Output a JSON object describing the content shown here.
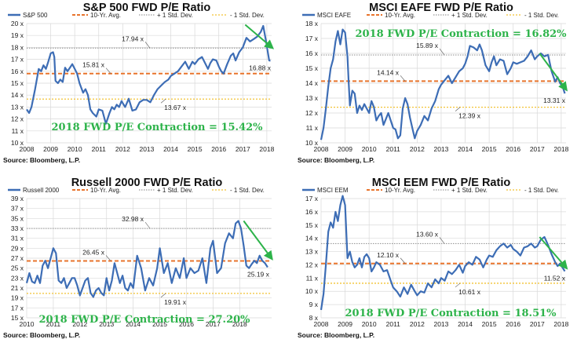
{
  "colors": {
    "series": "#3d6db5",
    "avg": "#e8742c",
    "plus": "#9a9a9a",
    "minus": "#f2c233",
    "arrow": "#2db34a",
    "contraction": "#2db34a",
    "grid": "#d9d9d9"
  },
  "chart_data": [
    {
      "type": "line",
      "title": "S&P 500 FWD P/E Ratio",
      "series_name": "S&P 500",
      "legend": {
        "avg": "10-Yr. Avg.",
        "plus": "+ 1 Std. Dev.",
        "minus": "- 1 Std. Dev."
      },
      "ylim": [
        10,
        20
      ],
      "yticks": [
        10,
        11,
        12,
        13,
        14,
        15,
        16,
        17,
        18,
        19,
        20
      ],
      "ytick_labels": [
        "10 x",
        "11 x",
        "12 x",
        "13 x",
        "14 x",
        "15 x",
        "16 x",
        "17 x",
        "18 x",
        "19 x",
        "20 x"
      ],
      "xlim": [
        2008,
        2018.2
      ],
      "xtick_labels": [
        "2008",
        "2009",
        "2010",
        "2011",
        "2012",
        "2013",
        "2014",
        "2015",
        "2016",
        "2017",
        "2018"
      ],
      "avg": 15.81,
      "plus_sd": 17.94,
      "minus_sd": 13.67,
      "avg_label": "15.81 x",
      "plus_label": "17.94 x",
      "minus_label": "13.67 x",
      "last_label": "16.88 x",
      "contraction": "2018 FWD P/E Contraction = 15.42%",
      "source": "Source: Bloomberg, L.P.",
      "x": [
        2008.0,
        2008.1,
        2008.2,
        2008.35,
        2008.5,
        2008.6,
        2008.7,
        2008.8,
        2008.9,
        2009.0,
        2009.1,
        2009.15,
        2009.2,
        2009.3,
        2009.4,
        2009.5,
        2009.6,
        2009.7,
        2009.8,
        2009.9,
        2010.0,
        2010.1,
        2010.2,
        2010.35,
        2010.45,
        2010.55,
        2010.65,
        2010.75,
        2010.9,
        2011.0,
        2011.15,
        2011.3,
        2011.45,
        2011.55,
        2011.65,
        2011.75,
        2011.85,
        2011.95,
        2012.1,
        2012.25,
        2012.4,
        2012.55,
        2012.7,
        2012.85,
        2013.0,
        2013.15,
        2013.3,
        2013.45,
        2013.6,
        2013.75,
        2013.9,
        2014.0,
        2014.15,
        2014.3,
        2014.45,
        2014.6,
        2014.75,
        2014.9,
        2015.0,
        2015.15,
        2015.3,
        2015.45,
        2015.55,
        2015.65,
        2015.75,
        2015.9,
        2016.0,
        2016.1,
        2016.2,
        2016.35,
        2016.5,
        2016.6,
        2016.7,
        2016.85,
        2017.0,
        2017.15,
        2017.3,
        2017.45,
        2017.6,
        2017.75,
        2017.85,
        2017.95,
        2018.05,
        2018.1,
        2018.15
      ],
      "values": [
        12.8,
        12.5,
        13.0,
        14.5,
        16.2,
        16.0,
        16.5,
        16.2,
        16.8,
        17.5,
        17.6,
        17.2,
        15.2,
        15.0,
        15.3,
        15.1,
        16.3,
        16.0,
        16.3,
        16.6,
        16.2,
        15.8,
        15.0,
        14.2,
        14.5,
        14.0,
        12.8,
        12.5,
        12.2,
        12.8,
        12.7,
        11.6,
        12.5,
        13.0,
        12.8,
        13.2,
        13.0,
        13.5,
        13.0,
        13.7,
        12.7,
        12.8,
        13.4,
        13.6,
        13.6,
        13.4,
        14.0,
        14.5,
        14.8,
        15.1,
        15.3,
        15.6,
        15.8,
        16.0,
        16.4,
        16.8,
        16.2,
        16.8,
        16.6,
        17.0,
        17.2,
        16.6,
        16.2,
        16.7,
        17.0,
        16.9,
        16.4,
        16.0,
        15.8,
        16.6,
        17.3,
        17.5,
        16.9,
        17.6,
        18.0,
        18.8,
        18.5,
        18.7,
        18.9,
        19.3,
        19.8,
        18.7,
        17.5,
        16.9,
        16.88
      ],
      "arrow": {
        "from": [
          2017.1,
          19.9
        ],
        "to": [
          2018.15,
          18.1
        ]
      }
    },
    {
      "type": "line",
      "title": "MSCI EAFE FWD P/E Ratio",
      "series_name": "MSCI EAFE",
      "legend": {
        "avg": "10-Yr. Avg.",
        "plus": "+ 1 Std. Dev.",
        "minus": "- 1 Std. Dev."
      },
      "ylim": [
        10,
        18
      ],
      "yticks": [
        10,
        11,
        12,
        13,
        14,
        15,
        16,
        17,
        18
      ],
      "ytick_labels": [
        "10 x",
        "11 x",
        "12 x",
        "13 x",
        "14 x",
        "15 x",
        "16 x",
        "17 x",
        "18 x"
      ],
      "xlim": [
        2008,
        2018.2
      ],
      "xtick_labels": [
        "2008",
        "2009",
        "2010",
        "2011",
        "2012",
        "2013",
        "2014",
        "2015",
        "2016",
        "2017",
        "2018"
      ],
      "avg": 14.14,
      "plus_sd": 15.89,
      "minus_sd": 12.39,
      "avg_label": "14.14 x",
      "plus_label": "15.89 x",
      "minus_label": "12.39 x",
      "last_label": "13.31 x",
      "contraction": "2018 FWD P/E Contraction = 16.82%",
      "source": "Source: Bloomberg, L.P.",
      "x": [
        2008.0,
        2008.1,
        2008.2,
        2008.3,
        2008.4,
        2008.5,
        2008.6,
        2008.7,
        2008.8,
        2008.9,
        2009.0,
        2009.1,
        2009.15,
        2009.2,
        2009.3,
        2009.4,
        2009.5,
        2009.6,
        2009.7,
        2009.8,
        2009.9,
        2010.0,
        2010.1,
        2010.2,
        2010.3,
        2010.4,
        2010.5,
        2010.6,
        2010.7,
        2010.8,
        2010.9,
        2011.0,
        2011.1,
        2011.2,
        2011.3,
        2011.4,
        2011.5,
        2011.6,
        2011.7,
        2011.8,
        2011.9,
        2012.0,
        2012.15,
        2012.3,
        2012.45,
        2012.6,
        2012.75,
        2012.9,
        2013.0,
        2013.15,
        2013.3,
        2013.45,
        2013.6,
        2013.75,
        2013.9,
        2014.0,
        2014.1,
        2014.2,
        2014.35,
        2014.5,
        2014.6,
        2014.7,
        2014.85,
        2015.0,
        2015.1,
        2015.2,
        2015.3,
        2015.45,
        2015.6,
        2015.75,
        2015.9,
        2016.0,
        2016.15,
        2016.3,
        2016.45,
        2016.6,
        2016.75,
        2016.9,
        2017.0,
        2017.15,
        2017.3,
        2017.45,
        2017.6,
        2017.75,
        2017.85,
        2017.95,
        2018.05,
        2018.15
      ],
      "values": [
        10.2,
        11.0,
        12.3,
        13.8,
        15.0,
        15.6,
        16.8,
        17.5,
        16.6,
        17.6,
        17.4,
        15.8,
        14.0,
        12.5,
        13.5,
        13.3,
        12.0,
        12.5,
        12.2,
        12.6,
        12.3,
        12.0,
        12.8,
        12.4,
        11.5,
        11.8,
        12.0,
        11.2,
        11.6,
        12.0,
        11.5,
        11.0,
        10.9,
        10.3,
        10.5,
        12.3,
        13.0,
        12.6,
        11.7,
        11.0,
        10.3,
        10.8,
        11.2,
        11.8,
        11.5,
        12.3,
        12.8,
        13.6,
        13.9,
        14.2,
        14.5,
        14.0,
        14.4,
        14.8,
        15.0,
        15.3,
        15.8,
        16.5,
        16.4,
        16.2,
        16.6,
        16.2,
        15.2,
        14.8,
        15.4,
        15.8,
        15.2,
        15.6,
        15.5,
        14.6,
        15.0,
        15.4,
        15.3,
        15.4,
        15.5,
        15.8,
        16.2,
        15.6,
        15.8,
        16.0,
        15.8,
        15.9,
        14.8,
        14.1,
        14.4,
        14.0,
        13.8,
        13.31
      ],
      "arrow": {
        "from": [
          2017.1,
          16.0
        ],
        "to": [
          2018.15,
          13.7
        ]
      }
    },
    {
      "type": "line",
      "title": "Russell 2000 FWD P/E Ratio",
      "series_name": "Russell 2000",
      "legend": {
        "avg": "10-Yr. Avg.",
        "plus": "+ 1 Std. Dev.",
        "minus": "- 1 Std. Dev."
      },
      "ylim": [
        15,
        39
      ],
      "yticks": [
        15,
        17,
        19,
        21,
        23,
        25,
        27,
        29,
        31,
        33,
        35,
        37,
        39
      ],
      "ytick_labels": [
        "15 x",
        "17 x",
        "19 x",
        "21 x",
        "23 x",
        "25 x",
        "27 x",
        "29 x",
        "31 x",
        "33 x",
        "35 x",
        "37 x",
        "39 x"
      ],
      "xlim": [
        2010,
        2019.2
      ],
      "xtick_labels": [
        "2010",
        "2011",
        "2012",
        "2013",
        "2014",
        "2015",
        "2016",
        "2017",
        "2018"
      ],
      "avg": 26.45,
      "plus_sd": 32.98,
      "minus_sd": 19.91,
      "avg_label": "26.45 x",
      "plus_label": "32.98 x",
      "minus_label": "19.91 x",
      "last_label": "25.19 x",
      "contraction": "2018 FWD P/E Contraction = 27.20%",
      "source": "Source: Bloomberg, L.P.",
      "x": [
        2010.0,
        2010.1,
        2010.2,
        2010.3,
        2010.4,
        2010.5,
        2010.6,
        2010.7,
        2010.8,
        2010.9,
        2011.0,
        2011.1,
        2011.2,
        2011.3,
        2011.4,
        2011.5,
        2011.6,
        2011.7,
        2011.8,
        2011.9,
        2012.0,
        2012.1,
        2012.2,
        2012.3,
        2012.4,
        2012.5,
        2012.6,
        2012.7,
        2012.8,
        2012.9,
        2013.0,
        2013.1,
        2013.2,
        2013.3,
        2013.4,
        2013.5,
        2013.6,
        2013.7,
        2013.8,
        2013.9,
        2014.0,
        2014.15,
        2014.3,
        2014.45,
        2014.6,
        2014.75,
        2014.9,
        2015.0,
        2015.15,
        2015.3,
        2015.45,
        2015.6,
        2015.75,
        2015.9,
        2016.0,
        2016.15,
        2016.3,
        2016.45,
        2016.6,
        2016.75,
        2016.9,
        2017.0,
        2017.15,
        2017.3,
        2017.45,
        2017.6,
        2017.75,
        2017.85,
        2017.95,
        2018.05,
        2018.15,
        2018.25,
        2018.35,
        2018.45,
        2018.55,
        2018.65,
        2018.75,
        2018.85,
        2018.95,
        2019.05
      ],
      "values": [
        22.0,
        24.0,
        22.3,
        22.0,
        23.5,
        22.0,
        25.5,
        26.5,
        25.0,
        27.0,
        29.0,
        28.0,
        22.5,
        22.0,
        23.0,
        21.0,
        22.0,
        23.0,
        23.0,
        21.5,
        19.5,
        21.0,
        22.5,
        23.0,
        20.0,
        19.2,
        20.5,
        21.0,
        20.0,
        19.5,
        23.0,
        20.5,
        22.5,
        26.0,
        24.0,
        22.0,
        23.5,
        21.0,
        20.5,
        22.0,
        21.0,
        27.5,
        25.0,
        20.5,
        23.0,
        21.5,
        25.0,
        29.0,
        24.0,
        26.0,
        22.0,
        25.0,
        23.0,
        27.0,
        23.0,
        25.0,
        24.0,
        24.5,
        27.0,
        22.0,
        29.0,
        30.5,
        24.0,
        25.0,
        30.0,
        32.0,
        31.0,
        34.0,
        34.5,
        33.0,
        29.5,
        25.5,
        25.0,
        25.8,
        26.5,
        26.0,
        27.5,
        26.5,
        26.0,
        25.19
      ],
      "arrow": {
        "from": [
          2018.15,
          34.5
        ],
        "to": [
          2019.15,
          27.3
        ]
      }
    },
    {
      "type": "line",
      "title": "MSCI EEM FWD P/E Ratio",
      "series_name": "MSCI EEM",
      "legend": {
        "avg": "10-Yr. Avg.",
        "plus": "+ 1 Std. Dev.",
        "minus": "- 1 Std. Dev."
      },
      "ylim": [
        8,
        17
      ],
      "yticks": [
        8,
        9,
        10,
        11,
        12,
        13,
        14,
        15,
        16,
        17
      ],
      "ytick_labels": [
        "8 x",
        "9 x",
        "10 x",
        "11 x",
        "12 x",
        "13 x",
        "14 x",
        "15 x",
        "16 x",
        "17 x"
      ],
      "xlim": [
        2008,
        2018.2
      ],
      "xtick_labels": [
        "2008",
        "2009",
        "2010",
        "2011",
        "2012",
        "2013",
        "2014",
        "2015",
        "2016",
        "2017",
        "2018"
      ],
      "avg": 12.1,
      "plus_sd": 13.6,
      "minus_sd": 10.61,
      "avg_label": "12.10 x",
      "plus_label": "13.60 x",
      "minus_label": "10.61 x",
      "last_label": "11.52 x",
      "contraction": "2018 FWD P/E Contraction = 18.51%",
      "source": "Source: Bloomberg, L.P.",
      "x": [
        2008.0,
        2008.1,
        2008.2,
        2008.3,
        2008.4,
        2008.5,
        2008.6,
        2008.7,
        2008.8,
        2008.9,
        2009.0,
        2009.1,
        2009.2,
        2009.3,
        2009.4,
        2009.5,
        2009.6,
        2009.7,
        2009.8,
        2009.9,
        2010.0,
        2010.1,
        2010.2,
        2010.3,
        2010.45,
        2010.6,
        2010.75,
        2010.9,
        2011.0,
        2011.15,
        2011.3,
        2011.45,
        2011.6,
        2011.75,
        2011.9,
        2012.0,
        2012.15,
        2012.3,
        2012.45,
        2012.6,
        2012.75,
        2012.9,
        2013.0,
        2013.15,
        2013.3,
        2013.45,
        2013.6,
        2013.75,
        2013.9,
        2014.0,
        2014.15,
        2014.3,
        2014.45,
        2014.6,
        2014.75,
        2014.9,
        2015.0,
        2015.15,
        2015.3,
        2015.45,
        2015.6,
        2015.75,
        2015.9,
        2016.0,
        2016.15,
        2016.3,
        2016.45,
        2016.6,
        2016.75,
        2016.9,
        2017.0,
        2017.15,
        2017.3,
        2017.45,
        2017.6,
        2017.75,
        2017.85,
        2017.95,
        2018.05,
        2018.15
      ],
      "values": [
        8.6,
        9.8,
        12.0,
        14.5,
        15.2,
        14.8,
        16.0,
        15.3,
        16.5,
        17.2,
        16.5,
        12.5,
        13.0,
        12.2,
        11.8,
        12.0,
        12.5,
        11.8,
        12.6,
        12.8,
        12.5,
        11.5,
        11.8,
        12.2,
        12.0,
        11.5,
        11.6,
        10.8,
        10.3,
        10.0,
        9.6,
        10.3,
        9.8,
        10.5,
        10.0,
        9.7,
        10.0,
        9.9,
        10.6,
        10.3,
        10.9,
        10.6,
        11.0,
        10.8,
        11.5,
        11.3,
        11.6,
        12.0,
        11.4,
        11.9,
        12.2,
        12.0,
        12.6,
        12.4,
        11.8,
        12.4,
        12.7,
        12.6,
        13.1,
        13.4,
        13.6,
        13.3,
        13.5,
        13.2,
        13.0,
        12.7,
        13.3,
        13.4,
        13.6,
        13.3,
        13.4,
        13.9,
        14.1,
        13.5,
        12.8,
        12.2,
        11.9,
        12.1,
        11.8,
        11.52
      ],
      "arrow": {
        "from": [
          2017.1,
          14.1
        ],
        "to": [
          2018.15,
          11.9
        ]
      }
    }
  ]
}
